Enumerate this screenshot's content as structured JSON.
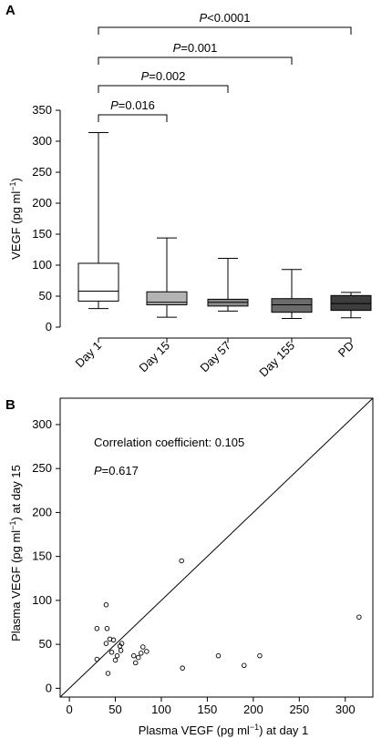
{
  "chart_data": [
    {
      "panel": "A",
      "type": "box",
      "ylabel": "VEGF (pg ml",
      "ylabel_sup": "−1",
      "ylabel_end": ")",
      "ylim": [
        0,
        350
      ],
      "yticks": [
        0,
        50,
        100,
        150,
        200,
        250,
        300,
        350
      ],
      "categories": [
        "Day 1",
        "Day 15",
        "Day 57",
        "Day 155",
        "PD"
      ],
      "boxes": [
        {
          "label": "Day 1",
          "min": 30,
          "q1": 42,
          "median": 58,
          "q3": 103,
          "max": 314,
          "color": "#ffffff"
        },
        {
          "label": "Day 15",
          "min": 16,
          "q1": 36,
          "median": 40,
          "q3": 57,
          "max": 144,
          "color": "#b3b3b3"
        },
        {
          "label": "Day 57",
          "min": 26,
          "q1": 34,
          "median": 40,
          "q3": 45,
          "max": 111,
          "color": "#8c8c8c"
        },
        {
          "label": "Day 155",
          "min": 14,
          "q1": 24,
          "median": 36,
          "q3": 46,
          "max": 93,
          "color": "#6b6b6b"
        },
        {
          "label": "PD",
          "min": 15,
          "q1": 27,
          "median": 38,
          "q3": 51,
          "max": 56,
          "color": "#3d3d3d"
        }
      ],
      "comparisons": [
        {
          "from": "Day 1",
          "to": "Day 15",
          "p_label": "P",
          "p_value": "=0.016"
        },
        {
          "from": "Day 1",
          "to": "Day 57",
          "p_label": "P",
          "p_value": "=0.002"
        },
        {
          "from": "Day 1",
          "to": "Day 155",
          "p_label": "P",
          "p_value": "=0.001"
        },
        {
          "from": "Day 1",
          "to": "PD",
          "p_label": "P",
          "p_value": "<0.0001"
        }
      ]
    },
    {
      "panel": "B",
      "type": "scatter",
      "xlabel": "Plasma VEGF (pg ml",
      "xlabel_sup": "−1",
      "xlabel_end": ") at day 1",
      "ylabel": "Plasma VEGF (pg ml",
      "ylabel_sup": "−1",
      "ylabel_end": ") at day 15",
      "xlim": [
        -10,
        330
      ],
      "ylim": [
        -10,
        330
      ],
      "xticks": [
        0,
        50,
        100,
        150,
        200,
        250,
        300
      ],
      "yticks": [
        0,
        50,
        100,
        150,
        200,
        250,
        300
      ],
      "identity_line": true,
      "annotation_correlation": "Correlation coefficient: 0.105",
      "annotation_p_label": "P",
      "annotation_p_value": "=0.617",
      "x": [
        30,
        30,
        40,
        40,
        41,
        42,
        44,
        46,
        48,
        50,
        52,
        55,
        56,
        57,
        70,
        72,
        75,
        78,
        80,
        84,
        122,
        123,
        162,
        190,
        207,
        315
      ],
      "y": [
        68,
        33,
        95,
        51,
        68,
        17,
        56,
        41,
        55,
        32,
        37,
        48,
        43,
        51,
        37,
        29,
        35,
        40,
        47,
        42,
        145,
        23,
        37,
        26,
        37,
        81
      ]
    }
  ]
}
